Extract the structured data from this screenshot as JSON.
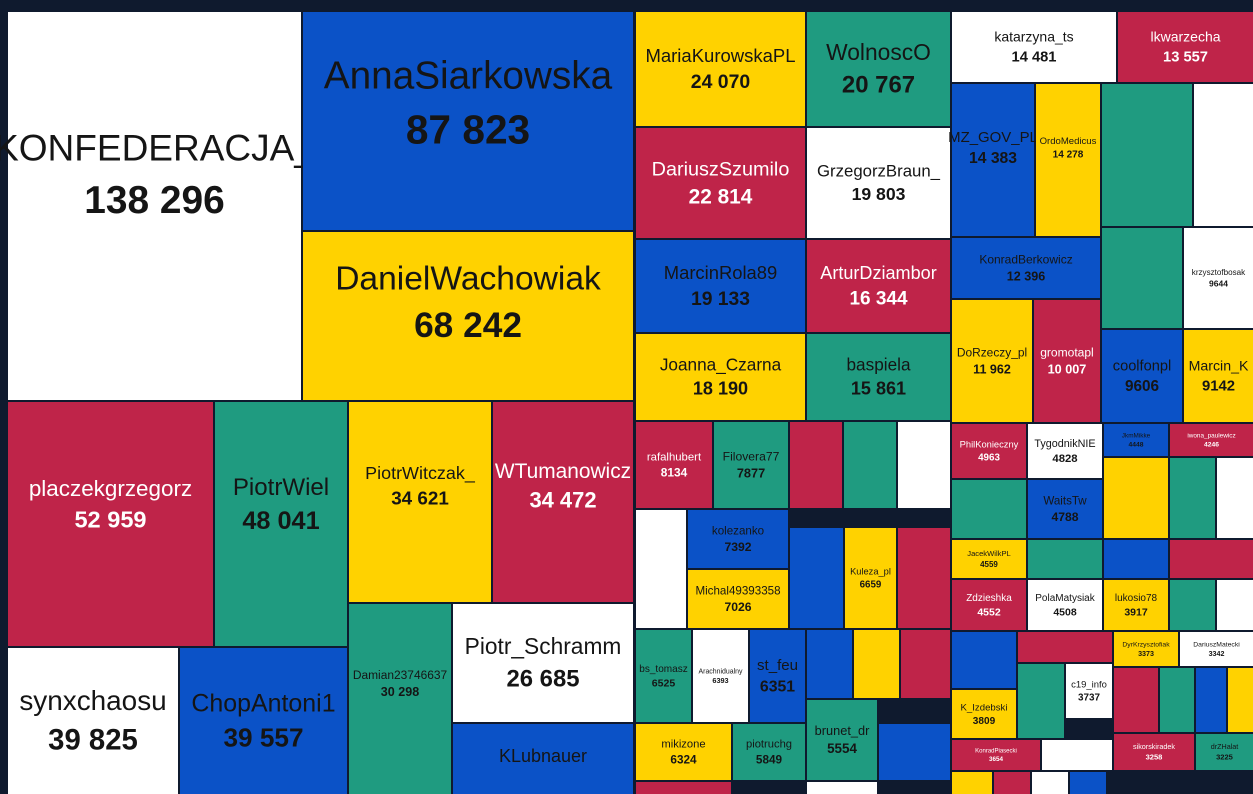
{
  "chart_data": {
    "type": "treemap",
    "categories": [
      "KONFEDERACJA_",
      "AnnaSiarkowska",
      "DanielWachowiak",
      "placzekgrzegorz",
      "PiotrWiel",
      "PiotrWitczak_",
      "WTumanowicz",
      "synxchaosu",
      "ChopAntoni1",
      "Damian23746637",
      "Piotr_Schramm",
      "KLubnauer",
      "MariaKurowskaPL",
      "WolnoscO",
      "DariuszSzumilo",
      "GrzegorzBraun_",
      "MarcinRola89",
      "ArturDziambor",
      "Joanna_Czarna",
      "baspiela",
      "rafalhubert",
      "Filovera77",
      "kolezanko",
      "Michal49393358",
      "Kuleza_pl",
      "bs_tomasz",
      "Arachnidualny",
      "st_feu",
      "mikizone",
      "piotruchg",
      "brunet_dr",
      "katarzyna_ts",
      "lkwarzecha",
      "MZ_GOV_PL",
      "OrdoMedicus",
      "KonradBerkowicz",
      "DoRzeczy_pl",
      "gromotapl",
      "krzysztofbosak",
      "coolfonpl",
      "Marcin_K",
      "PhilKonieczny",
      "TygodnikNIE",
      "JkmMikke",
      "iwona_paulewicz",
      "WaitsTw",
      "JacekWilkPL",
      "Zdzieshka",
      "PolaMatysiak",
      "lukosio78",
      "K_Izdebski",
      "c19_info",
      "KonradPiasecki",
      "DyrKrzysztofiak",
      "DariuszMatecki",
      "sikorskiradek",
      "drZHalat"
    ],
    "values": [
      138296,
      87823,
      68242,
      52959,
      48041,
      34621,
      34472,
      39825,
      39557,
      30298,
      26685,
      25000,
      24070,
      20767,
      22814,
      19803,
      19133,
      16344,
      18190,
      15861,
      8134,
      7877,
      7392,
      7026,
      6659,
      6525,
      6393,
      6351,
      6324,
      5849,
      5554,
      14481,
      13557,
      14383,
      14278,
      12396,
      11962,
      10007,
      9644,
      9606,
      9142,
      4963,
      4828,
      4448,
      4246,
      4788,
      4559,
      4552,
      4508,
      3917,
      3809,
      3737,
      3654,
      3373,
      3342,
      3258,
      3225
    ],
    "value_labels": [
      "138 296",
      "87 823",
      "68 242",
      "52 959",
      "48 041",
      "34 621",
      "34 472",
      "39 825",
      "39 557",
      "30 298",
      "26 685",
      null,
      "24 070",
      "20 767",
      "22 814",
      "19 803",
      "19 133",
      "16 344",
      "18 190",
      "15 861",
      "8134",
      "7877",
      "7392",
      "7026",
      "6659",
      "6525",
      "6393",
      "6351",
      "6324",
      "5849",
      "5554",
      "14 481",
      "13 557",
      "14 383",
      "14 278",
      "12 396",
      "11 962",
      "10 007",
      "9644",
      "9606",
      "9142",
      "4963",
      "4828",
      "4448",
      "4246",
      "4788",
      "4559",
      "4552",
      "4508",
      "3917",
      "3809",
      "3737",
      "3654",
      "3373",
      "3342",
      "3258",
      "3225"
    ],
    "colors": [
      "#ffffff",
      "#0b52c7",
      "#ffd200",
      "#bf2449",
      "#1f9b80",
      "#ffd200",
      "#bf2449",
      "#ffffff",
      "#0b52c7",
      "#1f9b80",
      "#ffffff",
      "#0b52c7",
      "#ffd200",
      "#1f9b80",
      "#bf2449",
      "#ffffff",
      "#0b52c7",
      "#bf2449",
      "#ffd200",
      "#1f9b80",
      "#bf2449",
      "#1f9b80",
      "#0b52c7",
      "#ffd200",
      "#ffd200",
      "#1f9b80",
      "#ffffff",
      "#0b52c7",
      "#ffd200",
      "#1f9b80",
      "#1f9b80",
      "#ffffff",
      "#bf2449",
      "#0b52c7",
      "#ffd200",
      "#0b52c7",
      "#ffd200",
      "#bf2449",
      "#ffffff",
      "#0b52c7",
      "#ffd200",
      "#bf2449",
      "#ffffff",
      "#0b52c7",
      "#bf2449",
      "#0b52c7",
      "#ffd200",
      "#bf2449",
      "#ffffff",
      "#ffd200",
      "#ffd200",
      "#ffffff",
      "#bf2449",
      "#ffd200",
      "#ffffff",
      "#bf2449",
      "#1f9b80"
    ]
  }
}
